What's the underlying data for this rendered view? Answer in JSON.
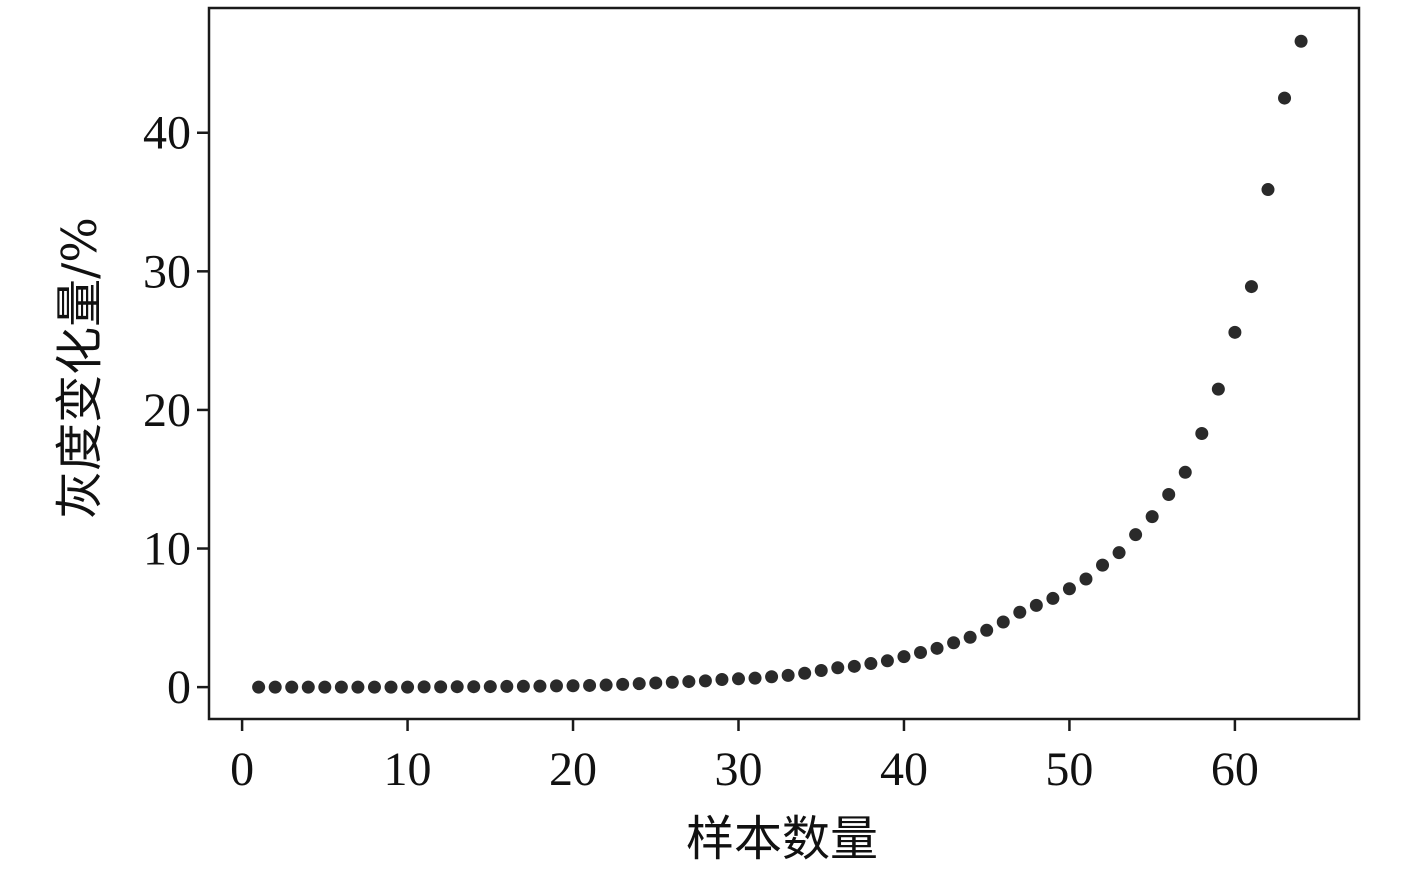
{
  "chart_data": {
    "type": "scatter",
    "xlabel": "样本数量",
    "ylabel": "灰度变化量/%",
    "xlim": [
      -2,
      67.5
    ],
    "ylim": [
      -2.3,
      49
    ],
    "x_ticks": [
      0,
      10,
      20,
      30,
      40,
      50,
      60
    ],
    "y_ticks": [
      0,
      10,
      20,
      30,
      40
    ],
    "grid": false,
    "legend": "none",
    "marker_color": "#2a2a2a",
    "series": [
      {
        "x": [
          1,
          2,
          3,
          4,
          5,
          6,
          7,
          8,
          9,
          10,
          11,
          12,
          13,
          14,
          15,
          16,
          17,
          18,
          19,
          20,
          21,
          22,
          23,
          24,
          25,
          26,
          27,
          28,
          29,
          30,
          31,
          32,
          33,
          34,
          35,
          36,
          37,
          38,
          39,
          40,
          41,
          42,
          43,
          44,
          45,
          46,
          47,
          48,
          49,
          50,
          51,
          52,
          53,
          54,
          55,
          56,
          57,
          58,
          59,
          60,
          61,
          62,
          63,
          64
        ],
        "y": [
          0.0,
          0.0,
          0.0,
          0.0,
          0.0,
          0.0,
          0.0,
          0.0,
          0.0,
          0.0,
          0.02,
          0.02,
          0.03,
          0.03,
          0.04,
          0.05,
          0.06,
          0.07,
          0.09,
          0.1,
          0.12,
          0.15,
          0.2,
          0.25,
          0.3,
          0.35,
          0.4,
          0.45,
          0.55,
          0.6,
          0.65,
          0.75,
          0.85,
          1.0,
          1.2,
          1.4,
          1.5,
          1.7,
          1.9,
          2.2,
          2.5,
          2.8,
          3.2,
          3.6,
          4.1,
          4.7,
          5.4,
          5.9,
          6.4,
          7.1,
          7.8,
          8.8,
          9.7,
          11.0,
          12.3,
          13.9,
          15.5,
          18.3,
          21.5,
          25.6,
          28.9,
          35.9,
          42.5,
          46.6
        ]
      }
    ]
  }
}
